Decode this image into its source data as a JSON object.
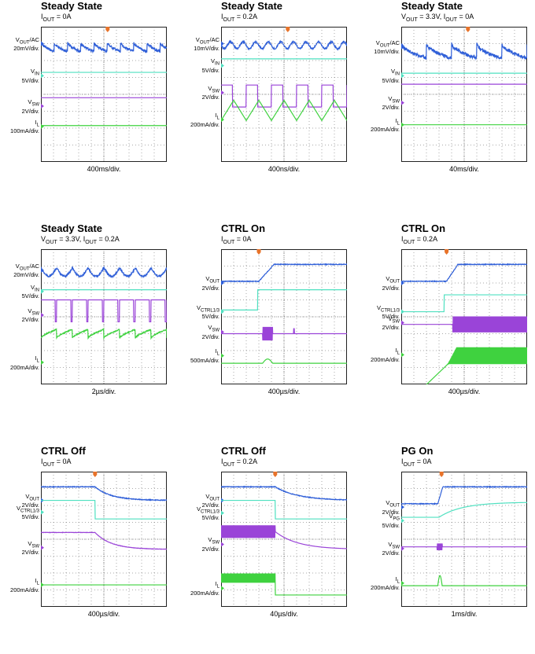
{
  "colors": {
    "vout": "#2f5fd8",
    "vin": "#4fe0c0",
    "vsw": "#9a44d8",
    "il": "#3fd23f",
    "trigger": "#e8732a"
  },
  "chart_data": [
    {
      "type": "line",
      "id": "p1",
      "title": "Steady State",
      "subtitle": {
        "prefix": "I",
        "sub": "OUT",
        "suffix": " = 0A"
      },
      "xlabel": "400ms/div.",
      "trigger_div": 5.3,
      "channels": [
        {
          "color_key": "vout",
          "name": "V",
          "name_sub": "OUT",
          "name_suffix": "/AC",
          "scale": "20mV/div.",
          "mode": "saw_fall",
          "level": 1.2,
          "amp": 0.55,
          "periods": 9.5,
          "noise": 0.07,
          "lpos": 1.0
        },
        {
          "color_key": "vin",
          "name": "V",
          "name_sub": "IN",
          "name_suffix": "",
          "scale": "5V/div.",
          "mode": "flat",
          "level": 2.7,
          "lpos": 2.9
        },
        {
          "color_key": "vsw",
          "name": "V",
          "name_sub": "SW",
          "name_suffix": "",
          "scale": "2V/div.",
          "mode": "flat",
          "level": 4.2,
          "lpos": 4.7
        },
        {
          "color_key": "il",
          "name": "I",
          "name_sub": "L",
          "name_suffix": "",
          "scale": "100mA/div.",
          "mode": "flat",
          "level": 5.85,
          "lpos": 5.9
        }
      ]
    },
    {
      "type": "line",
      "id": "p2",
      "title": "Steady State",
      "subtitle": {
        "prefix": "I",
        "sub": "OUT",
        "suffix": " = 0.2A"
      },
      "xlabel": "400ns/div.",
      "trigger_div": 5.3,
      "channels": [
        {
          "color_key": "vout",
          "name": "V",
          "name_sub": "OUT",
          "name_suffix": "/AC",
          "scale": "10mV/div.",
          "mode": "sine",
          "level": 1.1,
          "amp": 0.2,
          "periods": 10,
          "noise": 0.05,
          "lpos": 1.0
        },
        {
          "color_key": "vin",
          "name": "V",
          "name_sub": "IN",
          "name_suffix": "",
          "scale": "5V/div.",
          "mode": "flat",
          "level": 1.9,
          "lpos": 2.3
        },
        {
          "color_key": "vsw",
          "name": "V",
          "name_sub": "SW",
          "name_suffix": "",
          "scale": "2V/div.",
          "mode": "square",
          "level": 4.1,
          "amp": 1.3,
          "periods": 5,
          "duty": 0.45,
          "lpos": 3.9
        },
        {
          "color_key": "il",
          "name": "I",
          "name_sub": "L",
          "name_suffix": "",
          "scale": "200mA/div.",
          "mode": "triangle",
          "level": 4.95,
          "amp": 0.6,
          "periods": 5,
          "lpos": 5.5
        }
      ]
    },
    {
      "type": "line",
      "id": "p3",
      "title": "Steady State",
      "subtitle": {
        "prefix": "V",
        "sub": "OUT",
        "suffix": " = 3.3V, I",
        "sub2": "OUT",
        "suffix2": " = 0A"
      },
      "xlabel": "40ms/div.",
      "trigger_div": 5.3,
      "channels": [
        {
          "color_key": "vout",
          "name": "V",
          "name_sub": "OUT",
          "name_suffix": "/AC",
          "scale": "10mV/div.",
          "mode": "saw_fall",
          "level": 1.45,
          "amp": 0.85,
          "periods": 5,
          "noise": 0.1,
          "lpos": 1.2
        },
        {
          "color_key": "vin",
          "name": "V",
          "name_sub": "IN",
          "name_suffix": "",
          "scale": "5V/div.",
          "mode": "flat",
          "level": 2.75,
          "lpos": 2.9
        },
        {
          "color_key": "vsw",
          "name": "V",
          "name_sub": "SW",
          "name_suffix": "",
          "scale": "2V/div.",
          "mode": "flat",
          "level": 3.4,
          "lpos": 4.5
        },
        {
          "color_key": "il",
          "name": "I",
          "name_sub": "L",
          "name_suffix": "",
          "scale": "200mA/div.",
          "mode": "flat",
          "level": 5.8,
          "lpos": 5.8
        }
      ]
    },
    {
      "type": "line",
      "id": "p4",
      "title": "Steady State",
      "subtitle": {
        "prefix": "V",
        "sub": "OUT",
        "suffix": " = 3.3V, I",
        "sub2": "OUT",
        "suffix2": " = 0.2A"
      },
      "xlabel": "2µs/div.",
      "trigger_div": -1,
      "channels": [
        {
          "color_key": "vout",
          "name": "V",
          "name_sub": "OUT",
          "name_suffix": "/AC",
          "scale": "20mV/div.",
          "mode": "sine_abs",
          "level": 1.35,
          "amp": 0.5,
          "periods": 8,
          "noise": 0.05,
          "lpos": 1.25
        },
        {
          "color_key": "vin",
          "name": "V",
          "name_sub": "IN",
          "name_suffix": "",
          "scale": "5V/div.",
          "mode": "flat",
          "level": 2.4,
          "lpos": 2.5
        },
        {
          "color_key": "vsw",
          "name": "V",
          "name_sub": "SW",
          "name_suffix": "",
          "scale": "2V/div.",
          "mode": "pulse_down",
          "level": 3.0,
          "amp": 1.3,
          "periods": 8,
          "lpos": 3.9
        },
        {
          "color_key": "il",
          "name": "I",
          "name_sub": "L",
          "name_suffix": "",
          "scale": "200mA/div.",
          "mode": "saw_rise",
          "level": 5.0,
          "amp": 0.5,
          "periods": 8,
          "noise": 0.03,
          "lpos": 6.7
        }
      ]
    },
    {
      "type": "line",
      "id": "p5",
      "title": "CTRL On",
      "subtitle": {
        "prefix": "I",
        "sub": "OUT",
        "suffix": " = 0A"
      },
      "xlabel": "400µs/div.",
      "trigger_div": 3.0,
      "channels": [
        {
          "color_key": "vout",
          "name": "V",
          "name_sub": "OUT",
          "name_suffix": "",
          "scale": "2V/div.",
          "mode": "ramp_up",
          "level": 1.9,
          "level2": 0.9,
          "t0": 3.0,
          "t1": 4.2,
          "noise": 0.02,
          "lpos": 2.0
        },
        {
          "color_key": "vin",
          "name": "V",
          "name_sub": "CTRL1/3",
          "name_suffix": "",
          "scale": "5V/div.",
          "mode": "step_up",
          "level": 3.6,
          "level2": 2.4,
          "t0": 2.9,
          "lpos": 3.7
        },
        {
          "color_key": "vsw",
          "name": "V",
          "name_sub": "SW",
          "name_suffix": "",
          "scale": "2V/div.",
          "mode": "burst",
          "level": 5.0,
          "amp": 0.8,
          "t0": 3.3,
          "t1": 4.1,
          "spike": 5.8,
          "lpos": 4.9
        },
        {
          "color_key": "il",
          "name": "I",
          "name_sub": "L",
          "name_suffix": "",
          "scale": "500mA/div.",
          "mode": "bump",
          "level": 6.75,
          "amp": 0.25,
          "t0": 3.3,
          "t1": 4.1,
          "lpos": 6.3
        }
      ]
    },
    {
      "type": "line",
      "id": "p6",
      "title": "CTRL On",
      "subtitle": {
        "prefix": "I",
        "sub": "OUT",
        "suffix": " = 0.2A"
      },
      "xlabel": "400µs/div.",
      "trigger_div": 3.6,
      "channels": [
        {
          "color_key": "vout",
          "name": "V",
          "name_sub": "OUT",
          "name_suffix": "",
          "scale": "2V/div.",
          "mode": "ramp_up",
          "level": 1.9,
          "level2": 0.9,
          "t0": 3.6,
          "t1": 4.5,
          "noise": 0.02,
          "lpos": 2.0
        },
        {
          "color_key": "vin",
          "name": "V",
          "name_sub": "CTRL1/3",
          "name_suffix": "",
          "scale": "5V/div.",
          "mode": "step_up",
          "level": 3.7,
          "level2": 2.7,
          "t0": 3.4,
          "lpos": 3.7
        },
        {
          "color_key": "vsw",
          "name": "V",
          "name_sub": "SW",
          "name_suffix": "",
          "scale": "2V/div.",
          "mode": "burst",
          "level": 4.45,
          "amp": 0.95,
          "t0": 4.1,
          "t1": 10,
          "lpos": 4.35
        },
        {
          "color_key": "il",
          "name": "I",
          "name_sub": "L",
          "name_suffix": "",
          "scale": "200mA/div.",
          "mode": "burst_ramp",
          "level": 6.8,
          "amp": 1.0,
          "t0": 3.7,
          "t1": 4.4,
          "lpos": 6.25
        }
      ]
    },
    {
      "type": "line",
      "id": "p7",
      "title": "CTRL Off",
      "subtitle": {
        "prefix": "I",
        "sub": "OUT",
        "suffix": " = 0A"
      },
      "xlabel": "400µs/div.",
      "trigger_div": 4.3,
      "channels": [
        {
          "color_key": "vout",
          "name": "V",
          "name_sub": "OUT",
          "name_suffix": "",
          "scale": "2V/div.",
          "mode": "decay",
          "level": 0.9,
          "level2": 1.7,
          "t0": 4.3,
          "tau": 1.3,
          "noise": 0.02,
          "lpos": 1.7
        },
        {
          "color_key": "vin",
          "name": "V",
          "name_sub": "CTRL1/3",
          "name_suffix": "",
          "scale": "5V/div.",
          "mode": "step_down",
          "level": 1.7,
          "level2": 2.8,
          "t0": 4.3,
          "lpos": 2.4
        },
        {
          "color_key": "vsw",
          "name": "V",
          "name_sub": "SW",
          "name_suffix": "",
          "scale": "2V/div.",
          "mode": "decay",
          "level": 3.6,
          "level2": 4.6,
          "t0": 4.3,
          "tau": 1.3,
          "noise": 0.01,
          "lpos": 4.5
        },
        {
          "color_key": "il",
          "name": "I",
          "name_sub": "L",
          "name_suffix": "",
          "scale": "200mA/div.",
          "mode": "flat",
          "level": 6.7,
          "lpos": 6.7
        }
      ]
    },
    {
      "type": "line",
      "id": "p8",
      "title": "CTRL Off",
      "subtitle": {
        "prefix": "I",
        "sub": "OUT",
        "suffix": " = 0.2A"
      },
      "xlabel": "40µs/div.",
      "trigger_div": 4.3,
      "channels": [
        {
          "color_key": "vout",
          "name": "V",
          "name_sub": "OUT",
          "name_suffix": "",
          "scale": "2V/div.",
          "mode": "decay",
          "level": 0.9,
          "level2": 1.7,
          "t0": 4.3,
          "tau": 1.8,
          "noise": 0.02,
          "lpos": 1.7
        },
        {
          "color_key": "vin",
          "name": "V",
          "name_sub": "CTRL1/3",
          "name_suffix": "",
          "scale": "5V/div.",
          "mode": "step_down",
          "level": 1.7,
          "level2": 2.8,
          "t0": 4.3,
          "lpos": 2.45
        },
        {
          "color_key": "vsw",
          "name": "V",
          "name_sub": "SW",
          "name_suffix": "",
          "scale": "2V/div.",
          "mode": "burst_decay",
          "level": 3.55,
          "amp": 0.75,
          "t0": 0,
          "t1": 4.3,
          "level2": 4.6,
          "tau": 1.8,
          "lpos": 4.3
        },
        {
          "color_key": "il",
          "name": "I",
          "name_sub": "L",
          "name_suffix": "",
          "scale": "200mA/div.",
          "mode": "burst_end",
          "level": 6.3,
          "amp": 0.55,
          "t0": 0,
          "t1": 4.3,
          "level2": 7.3,
          "lpos": 6.9
        }
      ]
    },
    {
      "type": "line",
      "id": "p9",
      "title": "PG On",
      "subtitle": {
        "prefix": "I",
        "sub": "OUT",
        "suffix": " = 0A"
      },
      "xlabel": "1ms/div.",
      "trigger_div": 3.2,
      "channels": [
        {
          "color_key": "vout",
          "name": "V",
          "name_sub": "OUT",
          "name_suffix": "",
          "scale": "2V/div.",
          "mode": "ramp_up",
          "level": 1.9,
          "level2": 0.9,
          "t0": 2.9,
          "t1": 3.3,
          "noise": 0.02,
          "lpos": 2.1
        },
        {
          "color_key": "vin",
          "name": "V",
          "name_sub": "PG",
          "name_suffix": "",
          "scale": "5V/div.",
          "mode": "pg_rise",
          "level": 2.7,
          "level2": 2.05,
          "t0": 3.0,
          "lpos": 2.9
        },
        {
          "color_key": "vsw",
          "name": "V",
          "name_sub": "SW",
          "name_suffix": "",
          "scale": "2V/div.",
          "mode": "burst",
          "level": 4.45,
          "amp": 0.4,
          "t0": 2.85,
          "t1": 3.25,
          "lpos": 4.55
        },
        {
          "color_key": "il",
          "name": "I",
          "name_sub": "L",
          "name_suffix": "",
          "scale": "200mA/div.",
          "mode": "bump",
          "level": 6.75,
          "amp": 0.6,
          "t0": 2.9,
          "t1": 3.25,
          "lpos": 6.6
        }
      ]
    }
  ]
}
